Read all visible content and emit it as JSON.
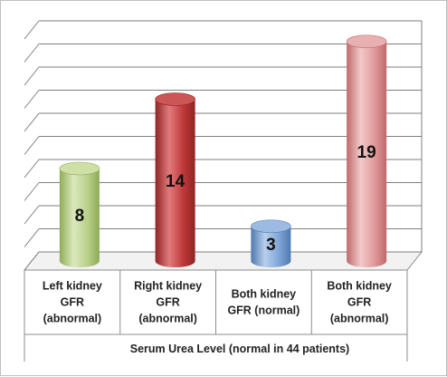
{
  "chart_data": {
    "type": "bar",
    "title": "",
    "ylabel": "",
    "xlabel": "Serum Urea Level (normal in 44 patients)",
    "categories": [
      [
        "Left kidney",
        "GFR",
        "(abnormal)"
      ],
      [
        "Right kidney",
        "GFR",
        "(abnormal)"
      ],
      [
        "Both kidney",
        "GFR (normal)"
      ],
      [
        "Both kidney",
        "GFR",
        "(abnormal)"
      ]
    ],
    "values": [
      8,
      14,
      3,
      19
    ],
    "data_labels": [
      "8",
      "14",
      "3",
      "19"
    ],
    "ylim": [
      0,
      20
    ],
    "grid": true,
    "legend": "none",
    "style": "3d-cylinder",
    "colors": [
      {
        "body": "#b9d08a",
        "dark": "#8fac55",
        "light": "#dbe8bd",
        "top": "#cfe0a7"
      },
      {
        "body": "#c0393a",
        "dark": "#8f2324",
        "light": "#e07b7b",
        "top": "#cc5556"
      },
      {
        "body": "#7fa6d6",
        "dark": "#4f79ae",
        "light": "#b7cfec",
        "top": "#9dbbe2"
      },
      {
        "body": "#e09a9b",
        "dark": "#c0696b",
        "light": "#f2c9ca",
        "top": "#e8b0b1"
      }
    ]
  }
}
